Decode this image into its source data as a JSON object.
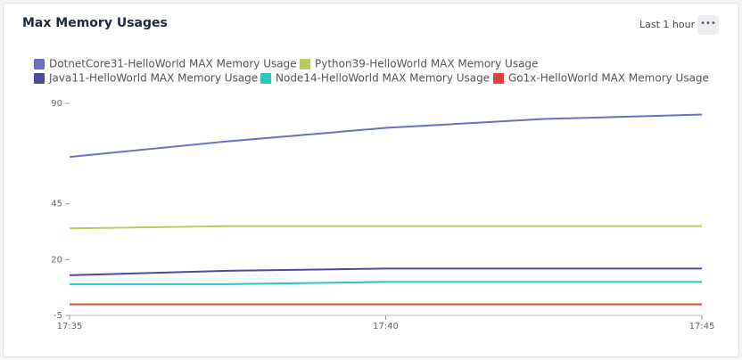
{
  "header": {
    "title": "Max Memory Usages",
    "range": "Last 1 hour"
  },
  "chart_data": {
    "type": "line",
    "x": [
      "17:35",
      null,
      "17:40",
      null,
      "17:45"
    ],
    "series": [
      {
        "name": "DotnetCore31-HelloWorld MAX Memory Usage",
        "color": "#6b6fc4",
        "values": [
          66,
          73,
          79,
          83,
          85
        ]
      },
      {
        "name": "Python39-HelloWorld MAX Memory Usage",
        "color": "#b5cc5e",
        "values": [
          34,
          35,
          35,
          35,
          35
        ]
      },
      {
        "name": "Java11-HelloWorld MAX Memory Usage",
        "color": "#4d4a9a",
        "values": [
          13,
          15,
          16,
          16,
          16
        ]
      },
      {
        "name": "Node14-HelloWorld MAX Memory Usage",
        "color": "#2ec4c0",
        "values": [
          9,
          9,
          10,
          10,
          10
        ]
      },
      {
        "name": "Go1x-HelloWorld MAX Memory Usage",
        "color": "#d9473a",
        "values": [
          0,
          0,
          0,
          0,
          0
        ]
      }
    ],
    "ylim": [
      -5,
      90
    ],
    "yticks": [
      -5,
      20,
      45,
      90
    ],
    "grid": false
  }
}
